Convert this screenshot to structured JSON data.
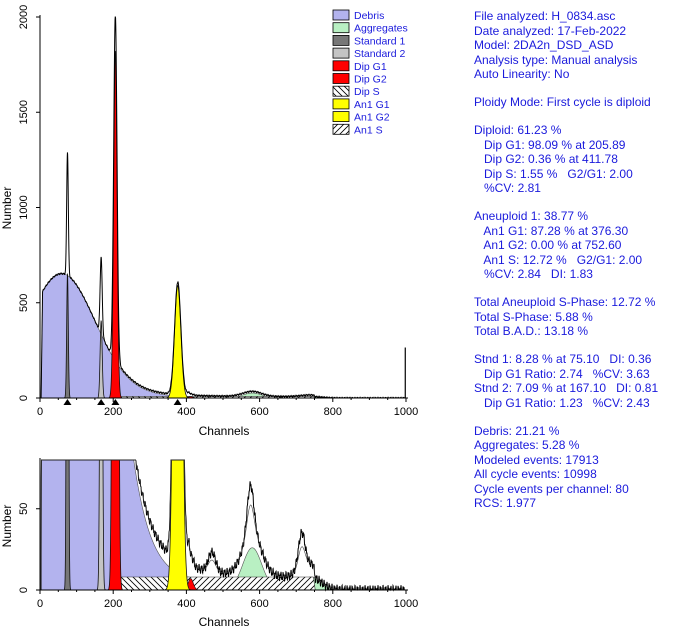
{
  "colors": {
    "debris": "#b3b3ee",
    "aggregates": "#b9f0c3",
    "standard1": "#777777",
    "standard2": "#c4c4c4",
    "dip_g1": "#ff0000",
    "dip_g2": "#ff0000",
    "an1_g1": "#ffff00",
    "an1_g2": "#ffff00",
    "text": "#1a1adc",
    "axis": "#000000"
  },
  "legend": [
    {
      "label": "Debris",
      "fill": "#b3b3ee",
      "pattern": "solid"
    },
    {
      "label": "Aggregates",
      "fill": "#b9f0c3",
      "pattern": "solid"
    },
    {
      "label": "Standard 1",
      "fill": "#777777",
      "pattern": "solid"
    },
    {
      "label": "Standard 2",
      "fill": "#c4c4c4",
      "pattern": "solid"
    },
    {
      "label": "Dip G1",
      "fill": "#ff0000",
      "pattern": "solid"
    },
    {
      "label": "Dip G2",
      "fill": "#ff0000",
      "pattern": "solid"
    },
    {
      "label": "Dip S",
      "fill": "#ffffff",
      "pattern": "backslash-hatch"
    },
    {
      "label": "An1 G1",
      "fill": "#ffff00",
      "pattern": "solid"
    },
    {
      "label": "An1 G2",
      "fill": "#ffff00",
      "pattern": "solid"
    },
    {
      "label": "An1 S",
      "fill": "#ffffff",
      "pattern": "slash-hatch"
    }
  ],
  "chart_data": [
    {
      "type": "area",
      "title": "",
      "xlabel": "Channels",
      "ylabel": "Number",
      "xlim": [
        0,
        1000
      ],
      "ylim": [
        0,
        2000
      ],
      "xticks": [
        0,
        200,
        400,
        600,
        800,
        1000
      ],
      "yticks": [
        0,
        500,
        1000,
        1500,
        2000
      ],
      "grid": false,
      "legend_placement": "top-right",
      "markers_x": [
        75,
        167,
        206,
        376
      ],
      "components": [
        {
          "name": "Debris",
          "peaks": [
            [
              5,
              55,
              195
            ],
            [
              60,
              600,
              90
            ]
          ],
          "x_range": [
            3,
            600
          ]
        },
        {
          "name": "Standard 1",
          "peaks": [
            [
              75.1,
              650,
              2.2
            ]
          ]
        },
        {
          "name": "Standard 2",
          "peaks": [
            [
              167.1,
              405,
              2.8
            ]
          ]
        },
        {
          "name": "Dip G1",
          "peaks": [
            [
              205.89,
              1820,
              4.6
            ]
          ]
        },
        {
          "name": "Dip G2",
          "peaks": [
            [
              411.78,
              7,
              7
            ]
          ]
        },
        {
          "name": "An1 G1",
          "peaks": [
            [
              376.3,
              590,
              8.5
            ]
          ]
        },
        {
          "name": "Aggregates",
          "peaks": [
            [
              580,
              26,
              26
            ],
            [
              740,
              8,
              28
            ]
          ]
        },
        {
          "name": "Dip S",
          "level": 8,
          "x_range": [
            206,
            412
          ]
        },
        {
          "name": "An1 S",
          "level": 8,
          "x_range": [
            376,
            752
          ]
        }
      ],
      "spike": {
        "x": 998,
        "y": 265
      }
    },
    {
      "type": "area",
      "title": "",
      "xlabel": "Channels",
      "ylabel": "Number",
      "xlim": [
        0,
        1000
      ],
      "ylim": [
        0,
        80
      ],
      "xticks": [
        0,
        200,
        400,
        600,
        800,
        1000
      ],
      "yticks": [
        0,
        50
      ],
      "grid": false,
      "clipped": true,
      "noise_peaks": [
        [
          470,
          12,
          10
        ],
        [
          575,
          30,
          9
        ],
        [
          715,
          22,
          9
        ]
      ]
    }
  ],
  "stats": [
    "File analyzed: H_0834.asc",
    "Date analyzed: 17-Feb-2022",
    "Model: 2DA2n_DSD_ASD",
    "Analysis type: Manual analysis",
    "Auto Linearity: No",
    "",
    "Ploidy Mode: First cycle is diploid",
    "",
    "Diploid: 61.23 %",
    "   Dip G1: 98.09 % at 205.89",
    "   Dip G2: 0.36 % at 411.78",
    "   Dip S: 1.55 %   G2/G1: 2.00",
    "   %CV: 2.81",
    "",
    "Aneuploid 1: 38.77 %",
    "   An1 G1: 87.28 % at 376.30",
    "   An1 G2: 0.00 % at 752.60",
    "   An1 S: 12.72 %   G2/G1: 2.00",
    "   %CV: 2.84   DI: 1.83",
    "",
    "Total Aneuploid S-Phase: 12.72 %",
    "Total S-Phase: 5.88 %",
    "Total B.A.D.: 13.18 %",
    "",
    "Stnd 1: 8.28 % at 75.10   DI: 0.36",
    "   Dip G1 Ratio: 2.74   %CV: 3.63",
    "Stnd 2: 7.09 % at 167.10   DI: 0.81",
    "   Dip G1 Ratio: 1.23   %CV: 2.43",
    "",
    "Debris: 21.21 %",
    "Aggregates: 5.28 %",
    "Modeled events: 17913",
    "All cycle events: 10998",
    "Cycle events per channel: 80",
    "RCS: 1.977"
  ]
}
